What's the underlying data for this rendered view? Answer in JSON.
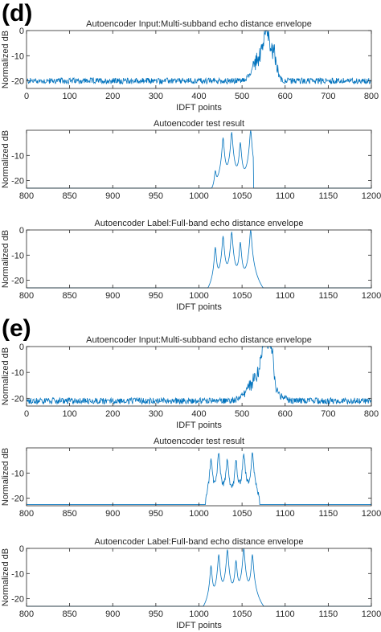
{
  "figure": {
    "panel_labels": [
      "(d)",
      "(e)"
    ],
    "line_color": "#0072BD",
    "axis_color": "#262626"
  },
  "chart_data": [
    {
      "type": "line",
      "panel": "(d)",
      "title": "Autoencoder Input:Multi-subband echo distance envelope",
      "xlabel": "IDFT points",
      "ylabel": "Normalized dB",
      "xlim": [
        0,
        800
      ],
      "ylim": [
        -23,
        0
      ],
      "xticks": [
        0,
        100,
        200,
        300,
        400,
        500,
        600,
        700,
        800
      ],
      "yticks": [
        0,
        -10,
        -20
      ],
      "signal": {
        "kind": "noisy",
        "baseline": -20,
        "noise": 1.2,
        "peaks": [
          {
            "x": 540,
            "h": 12,
            "w": 14
          },
          {
            "x": 556,
            "h": 20,
            "w": 6
          },
          {
            "x": 572,
            "h": 14,
            "w": 8
          }
        ],
        "n": 800
      }
    },
    {
      "type": "line",
      "panel": "(d)",
      "title": "Autoencoder test result",
      "xlabel": "",
      "ylabel": "Normalized dB",
      "xlim": [
        800,
        1200
      ],
      "ylim": [
        -23,
        0
      ],
      "xticks": [
        800,
        850,
        900,
        950,
        1000,
        1050,
        1100,
        1150,
        1200
      ],
      "yticks": [
        -10,
        -20
      ],
      "signal": {
        "kind": "peaks",
        "floor": -23,
        "range": [
          1003,
          1063
        ],
        "hardEdgeRight": true,
        "peaks": [
          {
            "x": 1019,
            "top": -17.5
          },
          {
            "x": 1028,
            "top": -3
          },
          {
            "x": 1038,
            "top": -0.8
          },
          {
            "x": 1048,
            "top": -5
          },
          {
            "x": 1060,
            "top": 0
          }
        ]
      }
    },
    {
      "type": "line",
      "panel": "(d)",
      "title": "Autoencoder Label:Full-band echo distance envelope",
      "xlabel": "IDFT points",
      "ylabel": "Normalized dB",
      "xlim": [
        800,
        1200
      ],
      "ylim": [
        -23,
        0
      ],
      "xticks": [
        800,
        850,
        900,
        950,
        1000,
        1050,
        1100,
        1150,
        1200
      ],
      "yticks": [
        0,
        -10,
        -20
      ],
      "signal": {
        "kind": "peaks",
        "floor": -23,
        "range": [
          800,
          1200
        ],
        "hardEdgeRight": false,
        "peaks": [
          {
            "x": 1019,
            "top": -7
          },
          {
            "x": 1028,
            "top": -2.5
          },
          {
            "x": 1038,
            "top": -0.8
          },
          {
            "x": 1048,
            "top": -5
          },
          {
            "x": 1060,
            "top": 0
          }
        ]
      }
    },
    {
      "type": "line",
      "panel": "(e)",
      "title": "Autoencoder Input:Multi-subband echo distance envelope",
      "xlabel": "IDFT points",
      "ylabel": "Normalized dB",
      "xlim": [
        0,
        800
      ],
      "ylim": [
        -23,
        0
      ],
      "xticks": [
        0,
        100,
        200,
        300,
        400,
        500,
        600,
        700,
        800
      ],
      "yticks": [
        0,
        -10,
        -20
      ],
      "signal": {
        "kind": "noisy",
        "baseline": -21,
        "noise": 1.2,
        "peaks": [
          {
            "x": 545,
            "h": 14,
            "w": 25
          },
          {
            "x": 552,
            "h": 18,
            "w": 6
          },
          {
            "x": 566,
            "h": 20,
            "w": 6
          }
        ],
        "n": 800
      }
    },
    {
      "type": "line",
      "panel": "(e)",
      "title": "Autoencoder test result",
      "xlabel": "",
      "ylabel": "Normalized dB",
      "xlim": [
        800,
        1200
      ],
      "ylim": [
        -23,
        0
      ],
      "xticks": [
        800,
        850,
        900,
        950,
        1000,
        1050,
        1100,
        1150,
        1200
      ],
      "yticks": [
        -10,
        -20
      ],
      "signal": {
        "kind": "peaks",
        "floor": -22.5,
        "range": [
          1008,
          1070
        ],
        "hardEdgeRight": true,
        "noisy": true,
        "peaks": [
          {
            "x": 1014,
            "top": -4
          },
          {
            "x": 1023,
            "top": -2
          },
          {
            "x": 1033,
            "top": -4
          },
          {
            "x": 1043,
            "top": -5
          },
          {
            "x": 1052,
            "top": -2
          },
          {
            "x": 1062,
            "top": -1.5
          }
        ]
      }
    },
    {
      "type": "line",
      "panel": "(e)",
      "title": "Autoencoder Label:Full-band echo distance envelope",
      "xlabel": "IDFT points",
      "ylabel": "Normalized dB",
      "xlim": [
        800,
        1200
      ],
      "ylim": [
        -23,
        0
      ],
      "xticks": [
        800,
        850,
        900,
        950,
        1000,
        1050,
        1100,
        1150,
        1200
      ],
      "yticks": [
        0,
        -10,
        -20
      ],
      "signal": {
        "kind": "peaks",
        "floor": -23,
        "range": [
          800,
          1200
        ],
        "hardEdgeRight": false,
        "peaks": [
          {
            "x": 1014,
            "top": -7
          },
          {
            "x": 1023,
            "top": -2.5
          },
          {
            "x": 1033,
            "top": -0.5
          },
          {
            "x": 1043,
            "top": -5
          },
          {
            "x": 1052,
            "top": 0
          },
          {
            "x": 1062,
            "top": -2.5
          }
        ]
      }
    }
  ]
}
